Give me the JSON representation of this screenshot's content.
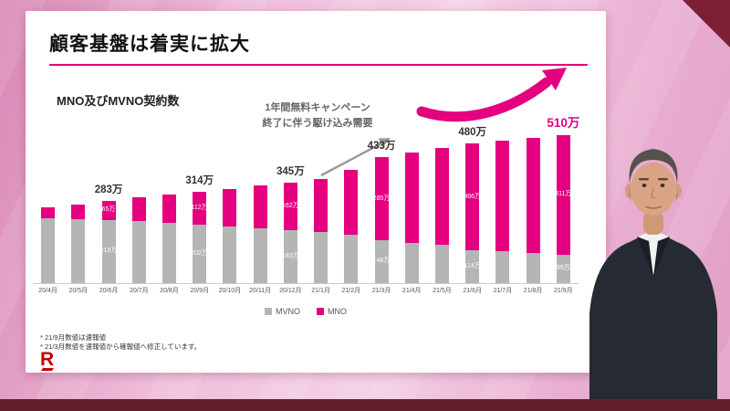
{
  "slide": {
    "title": "顧客基盤は着実に拡大",
    "subtitle": "MNO及びMVNO契約数",
    "annotation_line1": "1年間無料キャンペーン",
    "annotation_line2": "終了に伴う駆け込み需要",
    "footnote1": "* 21/9月数値は速報値",
    "footnote2": "* 21/3月数値を速報値から確報値へ修正しています。",
    "logo_letter": "R",
    "accent_color": "#e4007f",
    "brand_color": "#bf0000"
  },
  "chart_data": {
    "type": "bar",
    "stacked": true,
    "title": "MNO及びMVNO契約数",
    "categories": [
      "20/4月",
      "20/5月",
      "20/6月",
      "20/7月",
      "20/8月",
      "20/9月",
      "20/10月",
      "20/11月",
      "20/12月",
      "21/1月",
      "21/2月",
      "21/3月",
      "21/4月",
      "21/5月",
      "21/6月",
      "21/7月",
      "21/8月",
      "21/9月"
    ],
    "series": [
      {
        "name": "MVNO",
        "color": "#b5b5b5",
        "values": [
          224,
          221,
          218,
          213,
          208,
          202,
          196,
          190,
          183,
          176,
          166,
          148,
          140,
          132,
          114,
          110,
          104,
          99
        ]
      },
      {
        "name": "MNO",
        "color": "#e4007f",
        "values": [
          36,
          49,
          65,
          82,
          97,
          112,
          129,
          146,
          162,
          184,
          224,
          285,
          310,
          333,
          366,
          380,
          396,
          411
        ]
      }
    ],
    "unit": "万",
    "total_labels": [
      {
        "index": 2,
        "text": "283万"
      },
      {
        "index": 5,
        "text": "314万"
      },
      {
        "index": 8,
        "text": "345万"
      },
      {
        "index": 11,
        "text": "433万"
      },
      {
        "index": 14,
        "text": "480万"
      },
      {
        "index": 17,
        "text": "510万",
        "highlight": true
      }
    ],
    "segment_labels": [
      {
        "index": 2,
        "mno": "65万",
        "mvno": "218万"
      },
      {
        "index": 5,
        "mno": "112万",
        "mvno": "202万"
      },
      {
        "index": 8,
        "mno": "162万",
        "mvno": "183万"
      },
      {
        "index": 11,
        "mno": "285万",
        "mvno": "148万"
      },
      {
        "index": 14,
        "mno": "366万",
        "mvno": "114万"
      },
      {
        "index": 17,
        "mno": "411万",
        "mvno": "99万"
      }
    ],
    "legend": [
      {
        "label": "MVNO",
        "color": "#b5b5b5"
      },
      {
        "label": "MNO",
        "color": "#e4007f"
      }
    ],
    "ylim": [
      0,
      560
    ],
    "legend_position": "bottom",
    "grid": false
  }
}
